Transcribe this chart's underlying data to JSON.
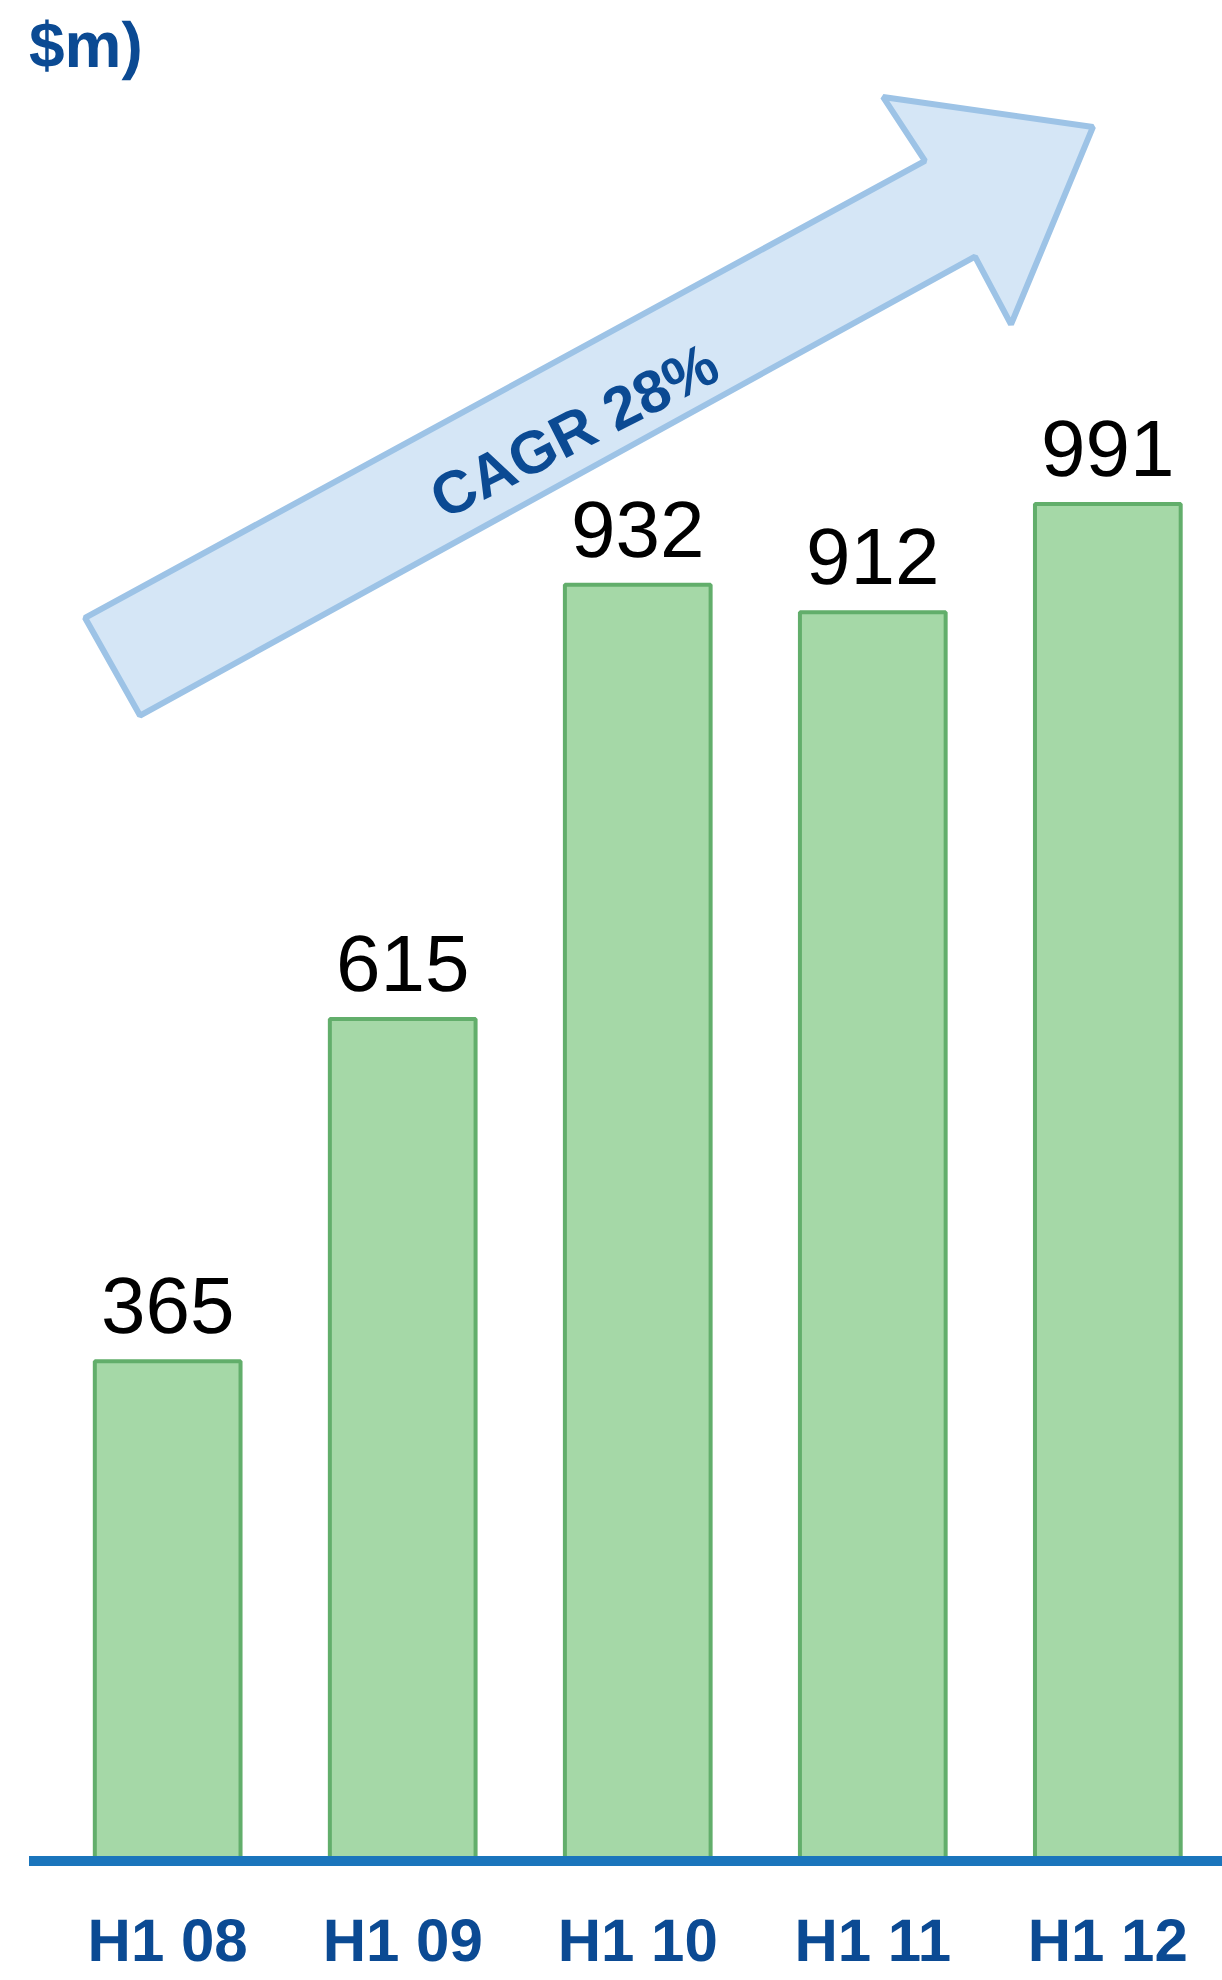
{
  "chart_data": {
    "type": "bar",
    "title": "$m)",
    "categories": [
      "H1 08",
      "H1 09",
      "H1 10",
      "H1 11",
      "H1 12"
    ],
    "values": [
      365,
      615,
      932,
      912,
      991
    ],
    "color": "#a5d8a7",
    "data_labels": true,
    "tick_labels": "x",
    "annotations": [
      "CAGR 28%"
    ]
  }
}
